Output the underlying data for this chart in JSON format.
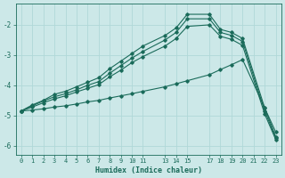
{
  "xlabel": "Humidex (Indice chaleur)",
  "bg_color": "#cce8e8",
  "grid_color": "#b0d8d8",
  "line_color": "#1a6b5a",
  "xlim": [
    -0.5,
    23.5
  ],
  "ylim": [
    -6.3,
    -1.3
  ],
  "xticks": [
    0,
    1,
    2,
    3,
    4,
    5,
    6,
    7,
    8,
    9,
    10,
    11,
    13,
    14,
    15,
    17,
    18,
    19,
    20,
    21,
    22,
    23
  ],
  "yticks": [
    -6,
    -5,
    -4,
    -3,
    -2
  ],
  "series1_x": [
    0,
    1,
    2,
    3,
    4,
    5,
    6,
    7,
    8,
    9,
    10,
    11,
    13,
    14,
    15,
    17,
    18,
    19,
    20,
    22,
    23
  ],
  "series1_y": [
    -4.85,
    -4.65,
    -4.5,
    -4.3,
    -4.2,
    -4.05,
    -3.9,
    -3.75,
    -3.45,
    -3.2,
    -2.95,
    -2.7,
    -2.35,
    -2.1,
    -1.65,
    -1.65,
    -2.15,
    -2.25,
    -2.45,
    -4.75,
    -5.7
  ],
  "series2_x": [
    0,
    1,
    2,
    3,
    4,
    5,
    6,
    7,
    8,
    9,
    10,
    11,
    13,
    14,
    15,
    17,
    18,
    19,
    20,
    22,
    23
  ],
  "series2_y": [
    -4.85,
    -4.68,
    -4.52,
    -4.38,
    -4.28,
    -4.15,
    -4.0,
    -3.88,
    -3.6,
    -3.35,
    -3.1,
    -2.88,
    -2.5,
    -2.25,
    -1.8,
    -1.8,
    -2.25,
    -2.35,
    -2.55,
    -4.85,
    -5.75
  ],
  "series3_x": [
    0,
    1,
    2,
    3,
    4,
    5,
    6,
    7,
    8,
    9,
    10,
    11,
    13,
    14,
    15,
    17,
    18,
    19,
    20,
    22,
    23
  ],
  "series3_y": [
    -4.85,
    -4.72,
    -4.58,
    -4.45,
    -4.35,
    -4.22,
    -4.1,
    -3.98,
    -3.72,
    -3.5,
    -3.25,
    -3.05,
    -2.7,
    -2.45,
    -2.05,
    -2.0,
    -2.38,
    -2.48,
    -2.68,
    -4.95,
    -5.8
  ],
  "series4_x": [
    0,
    1,
    2,
    3,
    4,
    5,
    6,
    7,
    8,
    9,
    10,
    11,
    13,
    14,
    15,
    17,
    18,
    19,
    20,
    22,
    23
  ],
  "series4_y": [
    -4.85,
    -4.82,
    -4.78,
    -4.72,
    -4.68,
    -4.62,
    -4.55,
    -4.5,
    -4.42,
    -4.35,
    -4.28,
    -4.2,
    -4.05,
    -3.95,
    -3.85,
    -3.65,
    -3.48,
    -3.32,
    -3.15,
    -4.75,
    -5.55
  ]
}
